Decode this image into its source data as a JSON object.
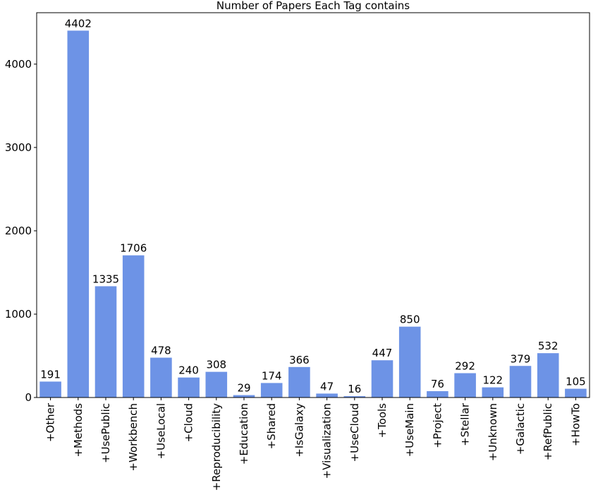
{
  "chart_data": {
    "type": "bar",
    "title": "Number of Papers Each Tag contains",
    "xlabel": "",
    "ylabel": "",
    "categories": [
      "+Other",
      "+Methods",
      "+UsePublic",
      "+Workbench",
      "+UseLocal",
      "+Cloud",
      "+Reproducibility",
      "+Education",
      "+Shared",
      "+IsGalaxy",
      "+Visualization",
      "+UseCloud",
      "+Tools",
      "+UseMain",
      "+Project",
      "+Stellar",
      "+Unknown",
      "+Galactic",
      "+RefPublic",
      "+HowTo"
    ],
    "values": [
      191,
      4402,
      1335,
      1706,
      478,
      240,
      308,
      29,
      174,
      366,
      47,
      16,
      447,
      850,
      76,
      292,
      122,
      379,
      532,
      105
    ],
    "ylim": [
      0,
      4617
    ],
    "yticks": [
      0,
      1000,
      2000,
      3000,
      4000
    ],
    "grid": false,
    "legend": "none",
    "bar_color": "#6d93e6",
    "show_value_labels": true
  }
}
